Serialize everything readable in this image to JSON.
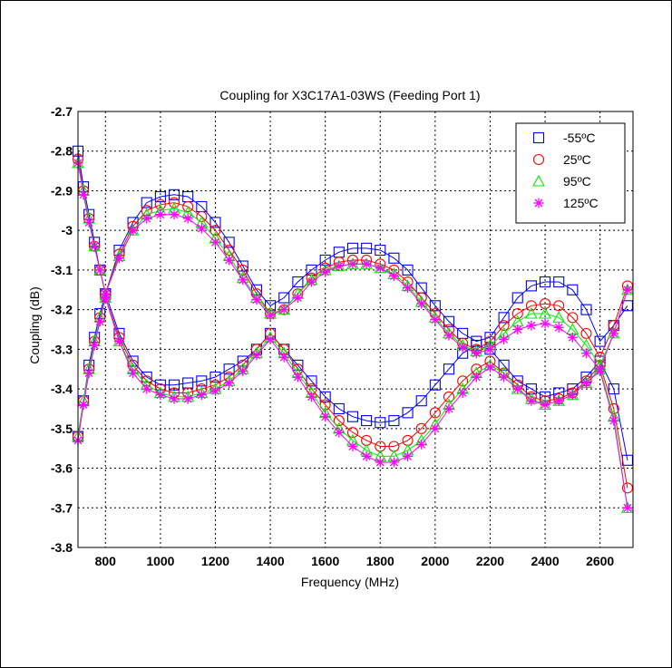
{
  "chart_data": {
    "type": "line",
    "title": "Coupling for X3C17A1-03WS (Feeding Port 1)",
    "xlabel": "Frequency (MHz)",
    "ylabel": "Coupling (dB)",
    "xlim": [
      700,
      2720
    ],
    "ylim": [
      -3.8,
      -2.7
    ],
    "xticks": [
      800,
      1000,
      1200,
      1400,
      1600,
      1800,
      2000,
      2200,
      2400,
      2600
    ],
    "yticks": [
      -3.8,
      -3.7,
      -3.6,
      -3.5,
      -3.4,
      -3.3,
      -3.2,
      -3.1,
      -3.0,
      -2.9,
      -2.8,
      -2.7
    ],
    "xtick_labels": [
      "800",
      "1000",
      "1200",
      "1400",
      "1600",
      "1800",
      "2000",
      "2200",
      "2400",
      "2600"
    ],
    "ytick_labels": [
      "-3.8",
      "-3.7",
      "-3.6",
      "-3.5",
      "-3.4",
      "-3.3",
      "-3.2",
      "-3.1",
      "-3",
      "-2.9",
      "-2.8",
      "-2.7"
    ],
    "grid": true,
    "legend_position": "top-right",
    "x": [
      700,
      720,
      740,
      760,
      780,
      800,
      850,
      900,
      950,
      1000,
      1050,
      1100,
      1150,
      1200,
      1250,
      1300,
      1350,
      1400,
      1450,
      1500,
      1550,
      1600,
      1650,
      1700,
      1750,
      1800,
      1850,
      1900,
      1950,
      2000,
      2050,
      2100,
      2150,
      2200,
      2250,
      2300,
      2350,
      2400,
      2450,
      2500,
      2550,
      2600,
      2650,
      2700
    ],
    "series": [
      {
        "name": "-55ºC",
        "marker": "square",
        "color": "#0000ff",
        "upper": [
          -2.8,
          -2.89,
          -2.96,
          -3.03,
          -3.1,
          -3.16,
          -3.05,
          -2.98,
          -2.93,
          -2.915,
          -2.91,
          -2.915,
          -2.94,
          -2.98,
          -3.03,
          -3.09,
          -3.15,
          -3.19,
          -3.17,
          -3.13,
          -3.1,
          -3.075,
          -3.055,
          -3.045,
          -3.045,
          -3.05,
          -3.07,
          -3.1,
          -3.145,
          -3.19,
          -3.23,
          -3.26,
          -3.28,
          -3.27,
          -3.22,
          -3.17,
          -3.14,
          -3.13,
          -3.13,
          -3.15,
          -3.2,
          -3.28,
          -3.24,
          -3.19
        ],
        "lower": [
          -3.52,
          -3.43,
          -3.34,
          -3.27,
          -3.21,
          -3.16,
          -3.26,
          -3.33,
          -3.37,
          -3.39,
          -3.39,
          -3.385,
          -3.38,
          -3.37,
          -3.35,
          -3.33,
          -3.3,
          -3.26,
          -3.3,
          -3.34,
          -3.38,
          -3.42,
          -3.45,
          -3.47,
          -3.48,
          -3.485,
          -3.48,
          -3.46,
          -3.43,
          -3.39,
          -3.35,
          -3.31,
          -3.29,
          -3.3,
          -3.34,
          -3.38,
          -3.4,
          -3.42,
          -3.41,
          -3.4,
          -3.37,
          -3.33,
          -3.4,
          -3.58
        ]
      },
      {
        "name": "25ºC",
        "marker": "circle",
        "color": "#ff0000",
        "upper": [
          -2.82,
          -2.9,
          -2.97,
          -3.04,
          -3.1,
          -3.16,
          -3.06,
          -2.99,
          -2.95,
          -2.935,
          -2.93,
          -2.94,
          -2.965,
          -3.0,
          -3.05,
          -3.1,
          -3.16,
          -3.21,
          -3.2,
          -3.16,
          -3.12,
          -3.095,
          -3.08,
          -3.075,
          -3.075,
          -3.085,
          -3.1,
          -3.13,
          -3.17,
          -3.21,
          -3.25,
          -3.285,
          -3.3,
          -3.28,
          -3.24,
          -3.21,
          -3.19,
          -3.185,
          -3.19,
          -3.22,
          -3.26,
          -3.32,
          -3.24,
          -3.14
        ],
        "lower": [
          -3.52,
          -3.43,
          -3.35,
          -3.28,
          -3.22,
          -3.17,
          -3.27,
          -3.34,
          -3.38,
          -3.4,
          -3.41,
          -3.41,
          -3.4,
          -3.39,
          -3.37,
          -3.34,
          -3.3,
          -3.26,
          -3.3,
          -3.35,
          -3.4,
          -3.44,
          -3.48,
          -3.51,
          -3.53,
          -3.545,
          -3.545,
          -3.53,
          -3.5,
          -3.46,
          -3.42,
          -3.38,
          -3.35,
          -3.33,
          -3.36,
          -3.39,
          -3.42,
          -3.43,
          -3.425,
          -3.41,
          -3.38,
          -3.34,
          -3.45,
          -3.65
        ]
      },
      {
        "name": "95ºC",
        "marker": "triangle",
        "color": "#00ee00",
        "upper": [
          -2.83,
          -2.9,
          -2.97,
          -3.04,
          -3.1,
          -3.16,
          -3.065,
          -3.0,
          -2.96,
          -2.95,
          -2.945,
          -2.955,
          -2.98,
          -3.02,
          -3.065,
          -3.12,
          -3.17,
          -3.21,
          -3.2,
          -3.16,
          -3.125,
          -3.1,
          -3.09,
          -3.085,
          -3.085,
          -3.095,
          -3.11,
          -3.14,
          -3.18,
          -3.22,
          -3.26,
          -3.29,
          -3.305,
          -3.29,
          -3.26,
          -3.23,
          -3.21,
          -3.21,
          -3.22,
          -3.25,
          -3.29,
          -3.34,
          -3.26,
          -3.15
        ],
        "lower": [
          -3.52,
          -3.43,
          -3.35,
          -3.28,
          -3.22,
          -3.17,
          -3.28,
          -3.35,
          -3.39,
          -3.41,
          -3.42,
          -3.42,
          -3.41,
          -3.4,
          -3.38,
          -3.35,
          -3.31,
          -3.27,
          -3.31,
          -3.36,
          -3.41,
          -3.46,
          -3.5,
          -3.53,
          -3.555,
          -3.57,
          -3.57,
          -3.555,
          -3.53,
          -3.49,
          -3.44,
          -3.4,
          -3.36,
          -3.34,
          -3.36,
          -3.4,
          -3.425,
          -3.44,
          -3.43,
          -3.415,
          -3.385,
          -3.35,
          -3.47,
          -3.7
        ]
      },
      {
        "name": "125ºC",
        "marker": "asterisk",
        "color": "#ff00ff",
        "upper": [
          -2.83,
          -2.91,
          -2.98,
          -3.04,
          -3.1,
          -3.16,
          -3.07,
          -3.0,
          -2.97,
          -2.96,
          -2.96,
          -2.97,
          -2.995,
          -3.03,
          -3.075,
          -3.125,
          -3.175,
          -3.215,
          -3.2,
          -3.17,
          -3.13,
          -3.105,
          -3.09,
          -3.085,
          -3.085,
          -3.095,
          -3.115,
          -3.145,
          -3.185,
          -3.225,
          -3.265,
          -3.295,
          -3.31,
          -3.3,
          -3.275,
          -3.25,
          -3.24,
          -3.235,
          -3.245,
          -3.27,
          -3.31,
          -3.35,
          -3.26,
          -3.15
        ],
        "lower": [
          -3.53,
          -3.44,
          -3.36,
          -3.29,
          -3.23,
          -3.17,
          -3.28,
          -3.36,
          -3.4,
          -3.415,
          -3.425,
          -3.425,
          -3.415,
          -3.405,
          -3.385,
          -3.355,
          -3.315,
          -3.275,
          -3.32,
          -3.37,
          -3.42,
          -3.47,
          -3.51,
          -3.545,
          -3.57,
          -3.585,
          -3.585,
          -3.57,
          -3.54,
          -3.5,
          -3.45,
          -3.41,
          -3.37,
          -3.345,
          -3.37,
          -3.4,
          -3.43,
          -3.44,
          -3.43,
          -3.415,
          -3.385,
          -3.355,
          -3.48,
          -3.7
        ]
      }
    ]
  }
}
